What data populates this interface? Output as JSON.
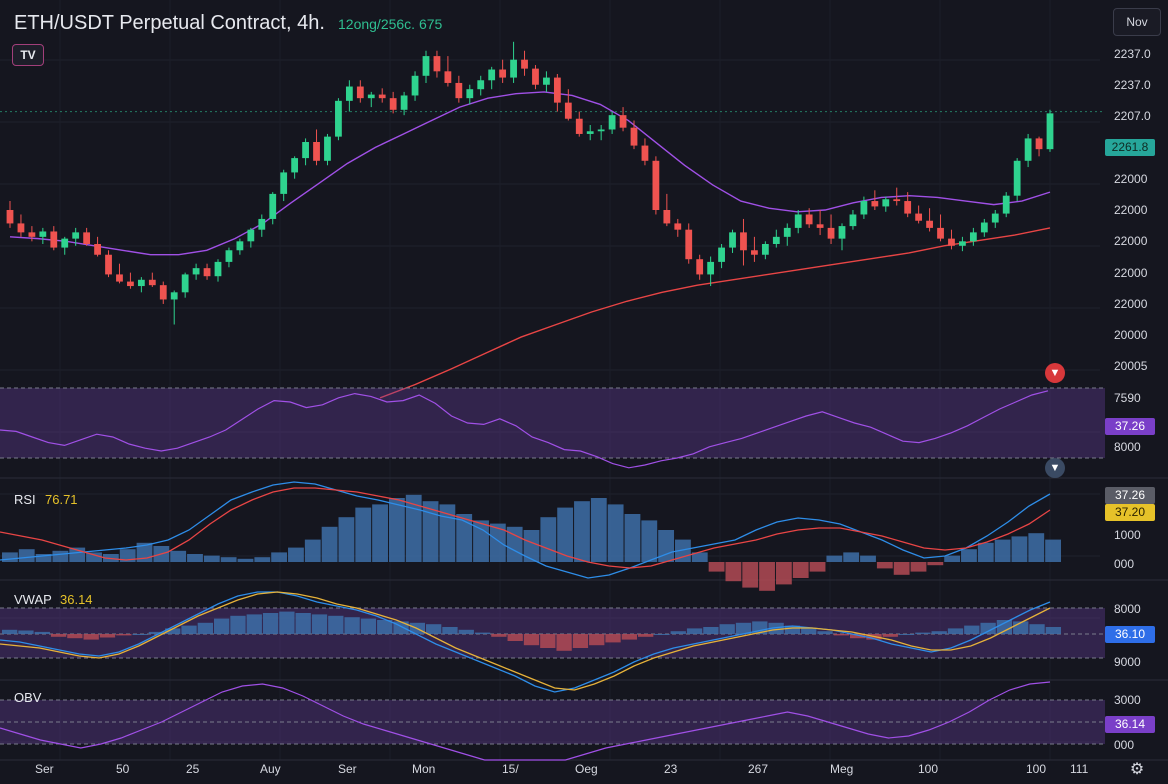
{
  "header": {
    "title": "ETH/USDT Perpetual Contract, 4h.",
    "meta": "12ong/256c. 675",
    "logo": "TV",
    "timeframe_button": "Nov"
  },
  "price_axis": [
    "2237.0",
    "2237.0",
    "2207.0",
    "22000",
    "22000",
    "22000",
    "22000",
    "22000",
    "20000",
    "20005"
  ],
  "last_price_tag": "2261.8",
  "panes": {
    "osc": {
      "ticks": [
        "7590",
        "8000"
      ],
      "tag": "37.26"
    },
    "rsi": {
      "label": "RSI",
      "value": "76.71",
      "ticks": [
        "1000",
        "000"
      ],
      "tag_a": "37.26",
      "tag_b": "37.20"
    },
    "vwap": {
      "label": "VWAP",
      "value": "36.14",
      "ticks": [
        "8000",
        "9000"
      ],
      "tag": "36.10"
    },
    "obv": {
      "label": "OBV",
      "ticks": [
        "3000",
        "000"
      ],
      "tag": "36.14"
    }
  },
  "x_axis": [
    "Ser",
    "50",
    "25",
    "Auy",
    "Ser",
    "Mon",
    "15/",
    "Oeg",
    "23",
    "267",
    "Meg",
    "100",
    "100",
    "111"
  ],
  "icons": {
    "alert": "alert-icon",
    "pin": "pin-icon",
    "settings": "gear-icon"
  },
  "colors": {
    "up": "#26a69a",
    "up_bright": "#2fd38f",
    "down": "#ef5350",
    "ma_fast": "#a050e6",
    "ma_slow": "#e84545",
    "band": "#6a3fa0",
    "line_blue": "#2e8de8",
    "line_orange": "#e6b23a",
    "line_red": "#e84545",
    "volume_blue": "#3d6ea8",
    "volume_red": "#b24a55"
  },
  "chart_data": {
    "type": "candlestick",
    "title": "ETH/USDT Perpetual Contract, 4h.",
    "ylim": [
      1900,
      2280
    ],
    "candles": [
      [
        2090,
        2100,
        2070,
        2075
      ],
      [
        2075,
        2085,
        2060,
        2065
      ],
      [
        2065,
        2072,
        2055,
        2060
      ],
      [
        2060,
        2070,
        2052,
        2066
      ],
      [
        2066,
        2072,
        2045,
        2048
      ],
      [
        2048,
        2060,
        2040,
        2058
      ],
      [
        2058,
        2070,
        2050,
        2065
      ],
      [
        2065,
        2070,
        2050,
        2052
      ],
      [
        2052,
        2060,
        2038,
        2040
      ],
      [
        2040,
        2045,
        2015,
        2018
      ],
      [
        2018,
        2030,
        2008,
        2010
      ],
      [
        2010,
        2020,
        2002,
        2005
      ],
      [
        2005,
        2015,
        1998,
        2012
      ],
      [
        2012,
        2020,
        2004,
        2006
      ],
      [
        2006,
        2010,
        1985,
        1990
      ],
      [
        1990,
        2000,
        1962,
        1998
      ],
      [
        1998,
        2020,
        1992,
        2018
      ],
      [
        2018,
        2030,
        2012,
        2025
      ],
      [
        2025,
        2030,
        2012,
        2016
      ],
      [
        2016,
        2035,
        2010,
        2032
      ],
      [
        2032,
        2048,
        2026,
        2045
      ],
      [
        2045,
        2058,
        2040,
        2055
      ],
      [
        2055,
        2070,
        2048,
        2068
      ],
      [
        2068,
        2085,
        2060,
        2080
      ],
      [
        2080,
        2110,
        2074,
        2108
      ],
      [
        2108,
        2135,
        2100,
        2132
      ],
      [
        2132,
        2150,
        2125,
        2148
      ],
      [
        2148,
        2170,
        2140,
        2166
      ],
      [
        2166,
        2180,
        2140,
        2145
      ],
      [
        2145,
        2175,
        2140,
        2172
      ],
      [
        2172,
        2215,
        2168,
        2212
      ],
      [
        2212,
        2235,
        2200,
        2228
      ],
      [
        2228,
        2235,
        2210,
        2215
      ],
      [
        2215,
        2222,
        2205,
        2219
      ],
      [
        2219,
        2226,
        2210,
        2215
      ],
      [
        2215,
        2222,
        2198,
        2202
      ],
      [
        2202,
        2222,
        2196,
        2218
      ],
      [
        2218,
        2245,
        2212,
        2240
      ],
      [
        2240,
        2268,
        2232,
        2262
      ],
      [
        2262,
        2268,
        2238,
        2245
      ],
      [
        2245,
        2262,
        2228,
        2232
      ],
      [
        2232,
        2240,
        2210,
        2215
      ],
      [
        2215,
        2230,
        2208,
        2225
      ],
      [
        2225,
        2240,
        2218,
        2235
      ],
      [
        2235,
        2250,
        2225,
        2247
      ],
      [
        2247,
        2258,
        2232,
        2238
      ],
      [
        2238,
        2278,
        2232,
        2258
      ],
      [
        2258,
        2268,
        2240,
        2248
      ],
      [
        2248,
        2252,
        2225,
        2230
      ],
      [
        2230,
        2245,
        2222,
        2238
      ],
      [
        2238,
        2242,
        2200,
        2210
      ],
      [
        2210,
        2225,
        2190,
        2192
      ],
      [
        2192,
        2200,
        2172,
        2175
      ],
      [
        2175,
        2185,
        2168,
        2178
      ],
      [
        2178,
        2185,
        2168,
        2180
      ],
      [
        2180,
        2200,
        2175,
        2196
      ],
      [
        2196,
        2205,
        2178,
        2182
      ],
      [
        2182,
        2190,
        2158,
        2162
      ],
      [
        2162,
        2170,
        2140,
        2145
      ],
      [
        2145,
        2150,
        2085,
        2090
      ],
      [
        2090,
        2108,
        2072,
        2075
      ],
      [
        2075,
        2080,
        2060,
        2068
      ],
      [
        2068,
        2075,
        2030,
        2035
      ],
      [
        2035,
        2040,
        2012,
        2018
      ],
      [
        2018,
        2038,
        2005,
        2032
      ],
      [
        2032,
        2052,
        2025,
        2048
      ],
      [
        2048,
        2068,
        2042,
        2065
      ],
      [
        2065,
        2080,
        2028,
        2045
      ],
      [
        2045,
        2060,
        2032,
        2040
      ],
      [
        2040,
        2055,
        2035,
        2052
      ],
      [
        2052,
        2068,
        2048,
        2060
      ],
      [
        2060,
        2075,
        2050,
        2070
      ],
      [
        2070,
        2090,
        2064,
        2085
      ],
      [
        2085,
        2092,
        2070,
        2074
      ],
      [
        2074,
        2090,
        2062,
        2070
      ],
      [
        2070,
        2085,
        2052,
        2058
      ],
      [
        2058,
        2075,
        2045,
        2072
      ],
      [
        2072,
        2090,
        2068,
        2085
      ],
      [
        2085,
        2105,
        2080,
        2100
      ],
      [
        2100,
        2112,
        2090,
        2094
      ],
      [
        2094,
        2105,
        2088,
        2102
      ],
      [
        2102,
        2115,
        2095,
        2100
      ],
      [
        2100,
        2110,
        2082,
        2086
      ],
      [
        2086,
        2095,
        2075,
        2078
      ],
      [
        2078,
        2092,
        2066,
        2070
      ],
      [
        2070,
        2085,
        2055,
        2058
      ],
      [
        2058,
        2068,
        2046,
        2050
      ],
      [
        2050,
        2060,
        2044,
        2055
      ],
      [
        2055,
        2070,
        2050,
        2065
      ],
      [
        2065,
        2080,
        2060,
        2076
      ],
      [
        2076,
        2090,
        2070,
        2086
      ],
      [
        2086,
        2110,
        2082,
        2106
      ],
      [
        2106,
        2148,
        2100,
        2145
      ],
      [
        2145,
        2175,
        2138,
        2170
      ],
      [
        2170,
        2172,
        2150,
        2158
      ],
      [
        2158,
        2202,
        2155,
        2198
      ]
    ],
    "ma_fast": [
      2060,
      2058,
      2055,
      2050,
      2045,
      2040,
      2040,
      2045,
      2058,
      2075,
      2098,
      2120,
      2142,
      2160,
      2175,
      2190,
      2205,
      2215,
      2220,
      2222,
      2218,
      2208,
      2190,
      2165,
      2140,
      2118,
      2100,
      2092,
      2088,
      2090,
      2098,
      2104,
      2106,
      2104,
      2100,
      2096,
      2100,
      2110
    ],
    "ma_slow": [
      1880,
      1895,
      1912,
      1930,
      1948,
      1962,
      1976,
      1988,
      1998,
      2006,
      2012,
      2018,
      2024,
      2030,
      2036,
      2042,
      2050,
      2056,
      2062,
      2070
    ],
    "volume_rsi": [
      6,
      8,
      5,
      7,
      9,
      6,
      5,
      8,
      12,
      10,
      7,
      5,
      4,
      3,
      2,
      3,
      6,
      9,
      14,
      22,
      28,
      34,
      36,
      40,
      42,
      38,
      36,
      30,
      26,
      24,
      22,
      20,
      28,
      34,
      38,
      40,
      36,
      30,
      26,
      20,
      14,
      6,
      -6,
      -12,
      -16,
      -18,
      -14,
      -10,
      -6,
      4,
      6,
      4,
      -4,
      -8,
      -6,
      -2,
      4,
      8,
      12,
      14,
      16,
      18,
      14
    ],
    "volume_vwap": [
      6,
      5,
      3,
      -4,
      -6,
      -8,
      -5,
      -2,
      0,
      3,
      8,
      12,
      16,
      22,
      26,
      28,
      30,
      32,
      30,
      28,
      26,
      24,
      22,
      20,
      18,
      16,
      14,
      10,
      6,
      2,
      -4,
      -10,
      -16,
      -20,
      -24,
      -20,
      -16,
      -12,
      -8,
      -4,
      0,
      4,
      8,
      10,
      14,
      16,
      18,
      16,
      12,
      8,
      4,
      -2,
      -6,
      -8,
      -4,
      0,
      2,
      4,
      8,
      12,
      16,
      20,
      18,
      14,
      10
    ]
  }
}
